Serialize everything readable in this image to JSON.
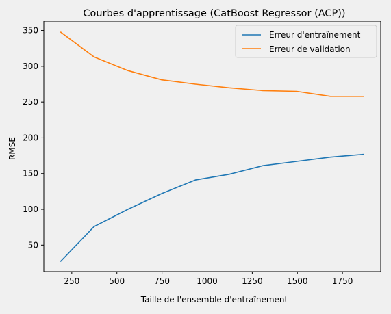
{
  "chart_data": {
    "type": "line",
    "title": "Courbes d'apprentissage (CatBoost Regressor (ACP))",
    "xlabel": "Taille de l'ensemble d'entraînement",
    "ylabel": "RMSE",
    "xlim": [
      95,
      1962
    ],
    "ylim": [
      13,
      363
    ],
    "xticks": [
      250,
      500,
      750,
      1000,
      1250,
      1500,
      1750
    ],
    "yticks": [
      50,
      100,
      150,
      200,
      250,
      300,
      350
    ],
    "grid": false,
    "legend_position": "top-right",
    "series": [
      {
        "name": "Erreur d'entraînement",
        "color": "#1f77b4",
        "x": [
          187,
          374,
          561,
          748,
          935,
          1122,
          1309,
          1496,
          1683,
          1870
        ],
        "y": [
          27,
          76,
          100,
          122,
          141,
          149,
          161,
          167,
          173,
          177
        ]
      },
      {
        "name": "Erreur de validation",
        "color": "#ff7f0e",
        "x": [
          187,
          374,
          561,
          748,
          935,
          1122,
          1309,
          1496,
          1683,
          1870
        ],
        "y": [
          348,
          313,
          294,
          281,
          275,
          270,
          266,
          265,
          258,
          258
        ]
      }
    ]
  }
}
